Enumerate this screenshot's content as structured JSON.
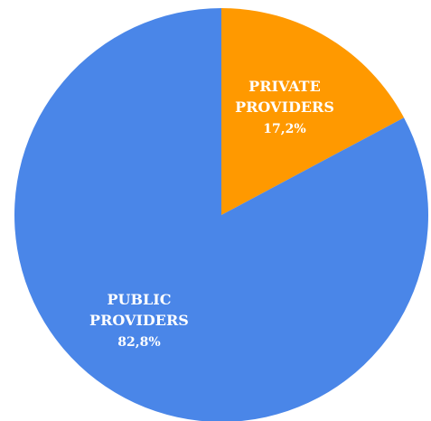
{
  "chart_data": {
    "type": "pie",
    "title": "",
    "start_angle_deg": 0,
    "direction": "clockwise",
    "slices": [
      {
        "key": "private",
        "label_lines": [
          "PRIVATE",
          "PROVIDERS"
        ],
        "percent_label": "17,2%",
        "value": 17.2,
        "color": "#FF9900"
      },
      {
        "key": "public",
        "label_lines": [
          "PUBLIC",
          "PROVIDERS"
        ],
        "percent_label": "82,8%",
        "value": 82.8,
        "color": "#4A86E8"
      }
    ]
  }
}
